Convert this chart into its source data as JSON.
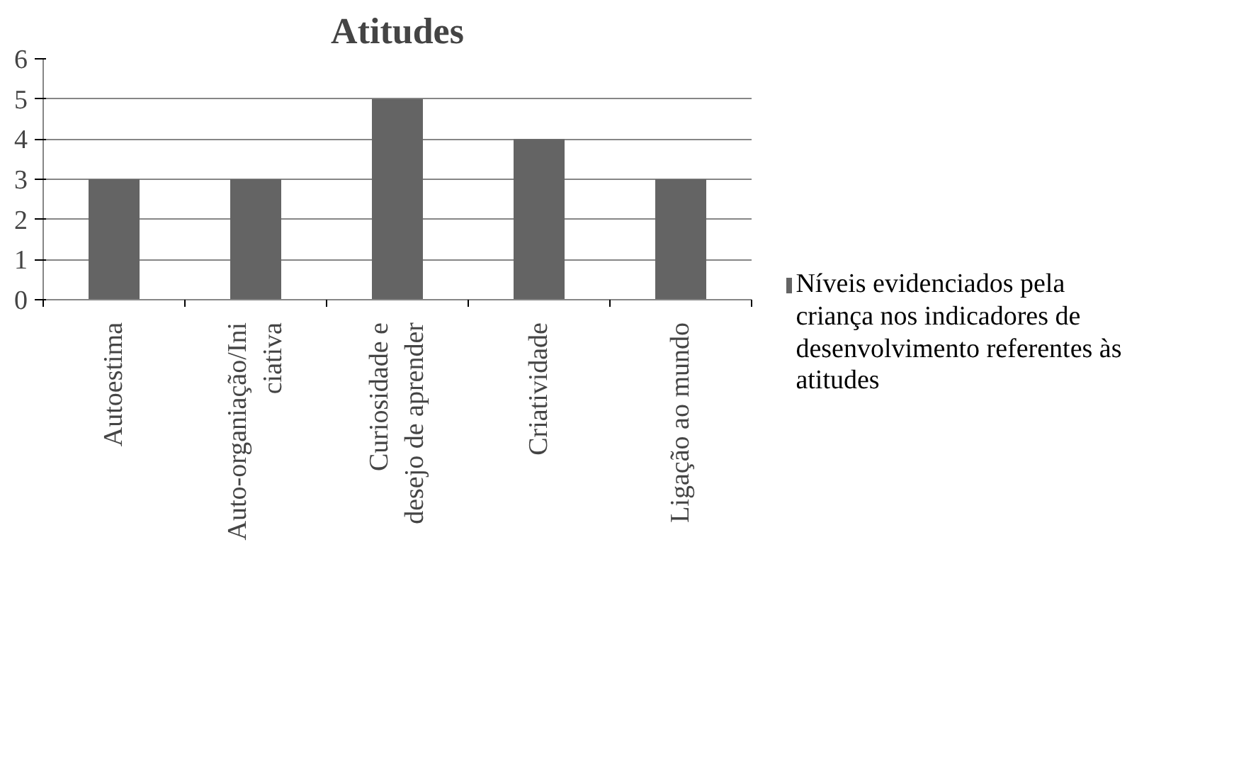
{
  "chart_data": {
    "type": "bar",
    "title": "Atitudes",
    "categories": [
      "Autoestima",
      "Auto-organiação/Iniciativa",
      "Curiosidade e desejo de aprender",
      "Criatividade",
      "Ligação ao mundo"
    ],
    "series": [
      {
        "name": "Níveis evidenciados pela criança nos indicadores de desenvolvimento referentes às atitudes",
        "color": "#646464",
        "values": [
          3,
          3,
          5,
          4,
          3
        ]
      }
    ],
    "ylim": [
      0,
      6
    ],
    "yticks": [
      0,
      1,
      2,
      3,
      4,
      5,
      6
    ],
    "grid": "y",
    "legend": "right"
  }
}
